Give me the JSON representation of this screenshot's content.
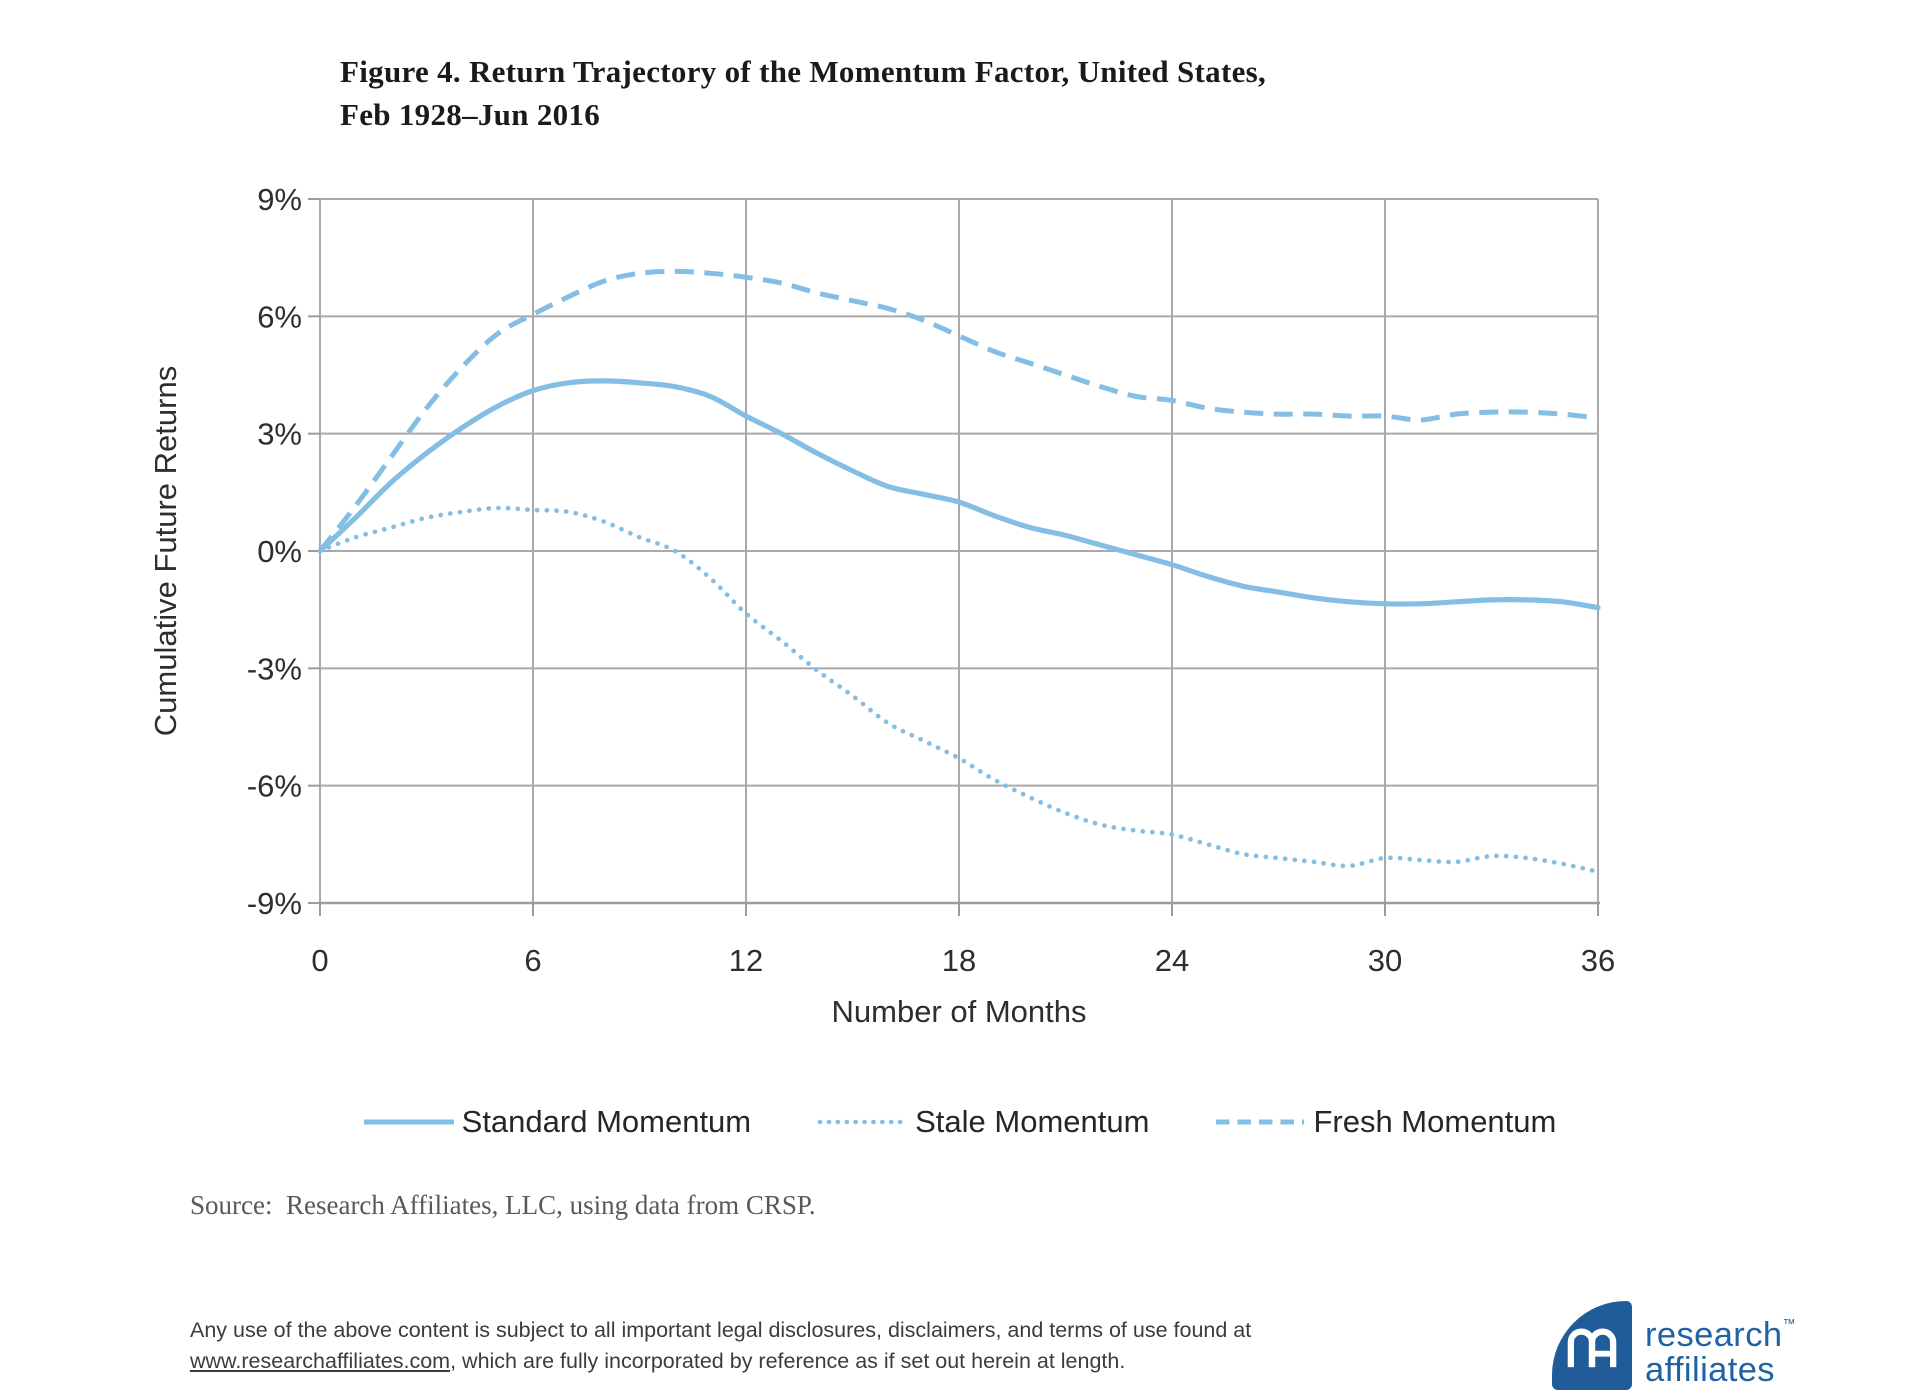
{
  "title": {
    "line1": "Figure 4. Return Trajectory of the Momentum Factor, United States,",
    "line2": "Feb 1928–Jun 2016"
  },
  "chart_data": {
    "type": "line",
    "title": "Figure 4. Return Trajectory of the Momentum Factor, United States, Feb 1928–Jun 2016",
    "xlabel": "Number of Months",
    "ylabel": "Cumulative Future Returns",
    "xlim": [
      0,
      36
    ],
    "ylim": [
      -9,
      9
    ],
    "x_ticks": [
      0,
      6,
      12,
      18,
      24,
      30,
      36
    ],
    "y_tick_values": [
      9,
      6,
      3,
      0,
      -3,
      -6,
      -9
    ],
    "y_tick_labels": [
      "9%",
      "6%",
      "3%",
      "0%",
      "-3%",
      "-6%",
      "-9%"
    ],
    "grid": true,
    "legend_position": "bottom",
    "line_color": "#85BEE5",
    "months": [
      0,
      1,
      2,
      3,
      4,
      5,
      6,
      7,
      8,
      9,
      10,
      11,
      12,
      13,
      14,
      15,
      16,
      17,
      18,
      19,
      20,
      21,
      22,
      23,
      24,
      25,
      26,
      27,
      28,
      29,
      30,
      31,
      32,
      33,
      34,
      35,
      36
    ],
    "series": [
      {
        "name": "Standard Momentum",
        "style": "solid",
        "values": [
          0,
          0.85,
          1.75,
          2.5,
          3.15,
          3.7,
          4.1,
          4.3,
          4.35,
          4.3,
          4.2,
          3.95,
          3.45,
          3.0,
          2.5,
          2.05,
          1.65,
          1.45,
          1.25,
          0.9,
          0.6,
          0.4,
          0.15,
          -0.1,
          -0.35,
          -0.65,
          -0.9,
          -1.05,
          -1.2,
          -1.3,
          -1.35,
          -1.35,
          -1.3,
          -1.25,
          -1.25,
          -1.3,
          -1.45
        ]
      },
      {
        "name": "Stale Momentum",
        "style": "dotted",
        "values": [
          0,
          0.35,
          0.6,
          0.85,
          1.0,
          1.1,
          1.05,
          1.0,
          0.75,
          0.35,
          0.0,
          -0.7,
          -1.6,
          -2.3,
          -3.05,
          -3.7,
          -4.4,
          -4.85,
          -5.3,
          -5.85,
          -6.3,
          -6.7,
          -7.0,
          -7.15,
          -7.25,
          -7.5,
          -7.75,
          -7.85,
          -7.95,
          -8.05,
          -7.85,
          -7.9,
          -7.95,
          -7.8,
          -7.85,
          -8.0,
          -8.2
        ]
      },
      {
        "name": "Fresh Momentum",
        "style": "dashed",
        "values": [
          0,
          1.15,
          2.4,
          3.65,
          4.7,
          5.55,
          6.05,
          6.5,
          6.9,
          7.1,
          7.15,
          7.1,
          7.0,
          6.85,
          6.6,
          6.4,
          6.2,
          5.9,
          5.5,
          5.1,
          4.8,
          4.5,
          4.2,
          3.95,
          3.85,
          3.65,
          3.55,
          3.5,
          3.5,
          3.45,
          3.45,
          3.35,
          3.5,
          3.55,
          3.55,
          3.5,
          3.4
        ]
      }
    ]
  },
  "source": {
    "text": "Source:  Research Affiliates, LLC, using data from CRSP."
  },
  "disclaimer": {
    "text_before": "Any use of the above content is subject to all important legal disclosures, disclaimers, and terms of use found at",
    "link": "www.researchaffiliates.com",
    "text_after": ", which are fully incorporated by reference as if set out herein at length."
  },
  "logo": {
    "word1": "research",
    "tm": "™",
    "word2": "affiliates"
  },
  "colors": {
    "curve": "#85BEE5",
    "grid": "#A9A9A9",
    "axis": "#9C9C9C",
    "logo_blue": "#1F5C99",
    "text_dark": "#262626",
    "text_gray": "#595959"
  }
}
